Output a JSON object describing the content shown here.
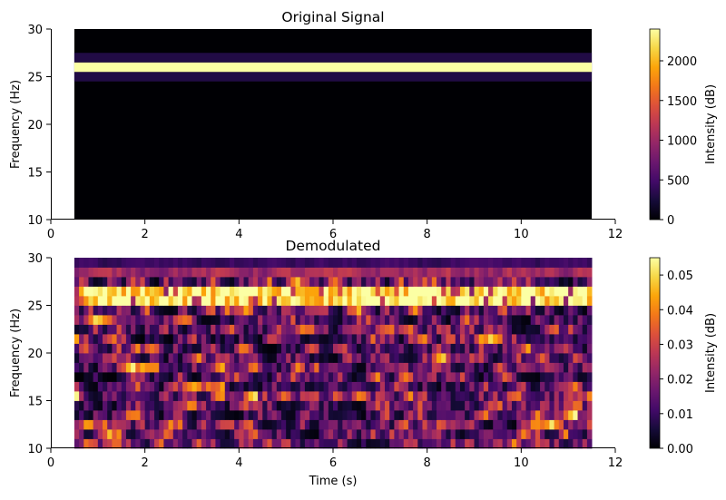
{
  "chart_data": [
    {
      "type": "heatmap",
      "title": "Original Signal",
      "xlabel": "",
      "ylabel": "Frequency (Hz)",
      "xlim": [
        0,
        12
      ],
      "ylim": [
        10,
        30
      ],
      "x_ticks": [
        0,
        2,
        4,
        6,
        8,
        10,
        12
      ],
      "y_ticks": [
        10,
        15,
        20,
        25,
        30
      ],
      "time_range": [
        0.5,
        11.5
      ],
      "colormap": "inferno",
      "colorbar": {
        "label": "Intensity (dB)",
        "range": [
          0,
          2400
        ],
        "ticks": [
          0,
          500,
          1000,
          1500,
          2000
        ]
      },
      "bands": [
        {
          "freq_range": [
            24.5,
            25.5
          ],
          "value": 300
        },
        {
          "freq_range": [
            25.5,
            26.5
          ],
          "value": 2400
        },
        {
          "freq_range": [
            26.5,
            27.5
          ],
          "value": 300
        }
      ],
      "background_value": 0
    },
    {
      "type": "heatmap",
      "title": "Demodulated",
      "xlabel": "Time (s)",
      "ylabel": "Frequency (Hz)",
      "xlim": [
        0,
        12
      ],
      "ylim": [
        10,
        30
      ],
      "x_ticks": [
        0,
        2,
        4,
        6,
        8,
        10,
        12
      ],
      "y_ticks": [
        10,
        15,
        20,
        25,
        30
      ],
      "time_range": [
        0.5,
        11.5
      ],
      "colormap": "inferno",
      "colorbar": {
        "label": "Intensity (dB)",
        "range": [
          0,
          0.055
        ],
        "ticks": [
          "0.00",
          "0.01",
          "0.02",
          "0.03",
          "0.04",
          "0.05"
        ]
      },
      "freq_bins": [
        10,
        11,
        12,
        13,
        14,
        15,
        16,
        17,
        18,
        19,
        20,
        21,
        22,
        23,
        24,
        25,
        26,
        27,
        28,
        29
      ],
      "strong_bins": [
        25,
        26
      ],
      "strong_value": 0.055,
      "noise_max": 0.055
    }
  ]
}
